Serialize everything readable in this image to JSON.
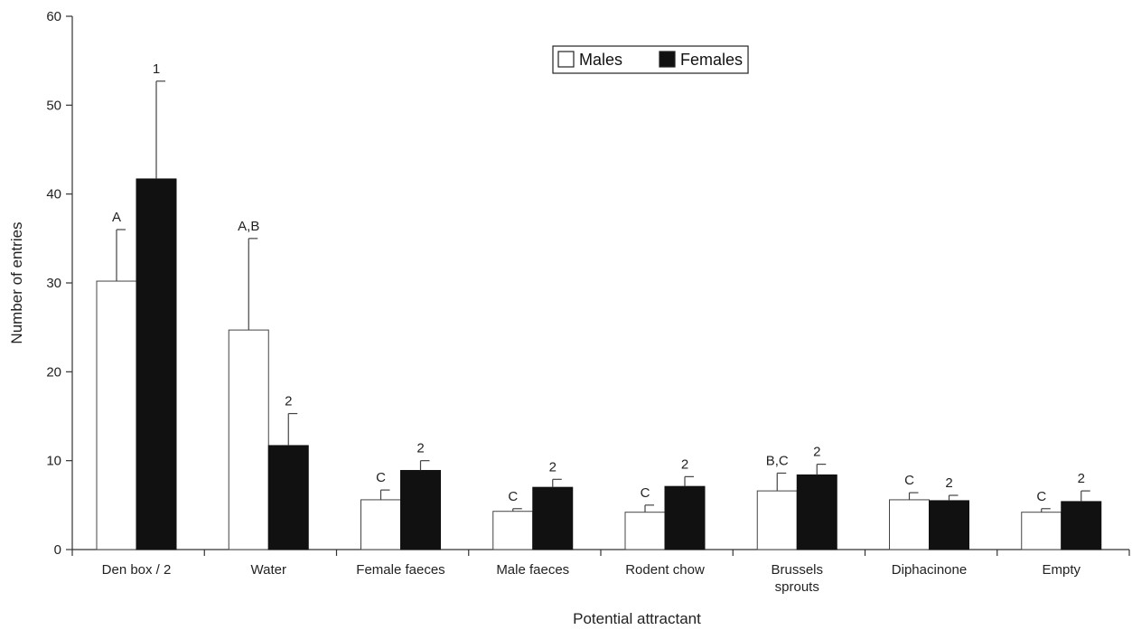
{
  "chart_data": {
    "type": "bar",
    "title": "",
    "xlabel": "Potential attractant",
    "ylabel": "Number of entries",
    "ylim": [
      0,
      60
    ],
    "yticks": [
      0,
      10,
      20,
      30,
      40,
      50,
      60
    ],
    "grid": false,
    "legend_position": "top-center",
    "categories": [
      [
        "Den box / 2"
      ],
      [
        "Water"
      ],
      [
        "Female faeces"
      ],
      [
        "Male faeces"
      ],
      [
        "Rodent chow"
      ],
      [
        "Brussels",
        "sprouts"
      ],
      [
        "Diphacinone"
      ],
      [
        "Empty"
      ]
    ],
    "series": [
      {
        "name": "Males",
        "color": "#ffffff",
        "values": [
          30.2,
          24.7,
          5.6,
          4.3,
          4.2,
          6.6,
          5.6,
          4.2
        ],
        "errors": [
          5.8,
          10.3,
          1.1,
          0.3,
          0.8,
          2.0,
          0.8,
          0.4
        ],
        "labels": [
          "A",
          "A,B",
          "C",
          "C",
          "C",
          "B,C",
          "C",
          "C"
        ]
      },
      {
        "name": "Females",
        "color": "#111111",
        "values": [
          41.7,
          11.7,
          8.9,
          7.0,
          7.1,
          8.4,
          5.5,
          5.4
        ],
        "errors": [
          11.0,
          3.6,
          1.1,
          0.9,
          1.1,
          1.2,
          0.6,
          1.2
        ],
        "labels": [
          "1",
          "2",
          "2",
          "2",
          "2",
          "2",
          "2",
          "2"
        ]
      }
    ]
  }
}
